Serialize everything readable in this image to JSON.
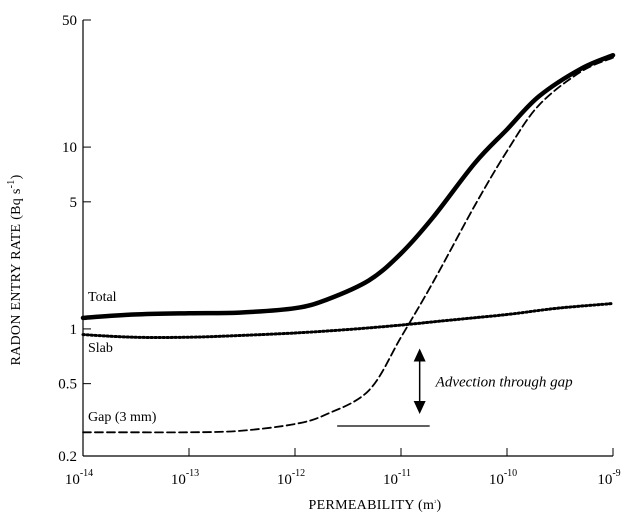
{
  "chart_data": {
    "type": "line",
    "title": "",
    "xlabel": "PERMEABILITY (m",
    "xlabel_sup": "2",
    "xlabel_close": ")",
    "ylabel": "RADON ENTRY RATE  (Bq s",
    "ylabel_sup": "-1",
    "ylabel_close": ")",
    "xscale": "log",
    "yscale": "log",
    "xlim": [
      1e-14,
      1e-09
    ],
    "ylim": [
      0.2,
      50
    ],
    "x_ticks": [
      {
        "base": "10",
        "exp": "-14"
      },
      {
        "base": "10",
        "exp": "-13"
      },
      {
        "base": "10",
        "exp": "-12"
      },
      {
        "base": "10",
        "exp": "-11"
      },
      {
        "base": "10",
        "exp": "-10"
      },
      {
        "base": "10",
        "exp": "-9"
      }
    ],
    "y_ticks": [
      "0.2",
      "0.5",
      "1",
      "5",
      "10",
      "50"
    ],
    "grid": false,
    "legend": "none",
    "series": [
      {
        "name": "Total",
        "style": "solid-thick",
        "x": [
          1e-14,
          3e-14,
          1e-13,
          3e-13,
          1e-12,
          2e-12,
          5e-12,
          1e-11,
          2e-11,
          5e-11,
          1e-10,
          2e-10,
          5e-10,
          1e-09
        ],
        "y": [
          1.15,
          1.2,
          1.22,
          1.23,
          1.3,
          1.45,
          1.85,
          2.6,
          4.1,
          8.2,
          12.5,
          19,
          27,
          32
        ]
      },
      {
        "name": "Slab",
        "style": "dotted",
        "x": [
          1e-14,
          3e-14,
          1e-13,
          3e-13,
          1e-12,
          3e-12,
          1e-11,
          3e-11,
          1e-10,
          3e-10,
          1e-09
        ],
        "y": [
          0.93,
          0.9,
          0.9,
          0.92,
          0.95,
          0.99,
          1.05,
          1.12,
          1.2,
          1.3,
          1.38
        ]
      },
      {
        "name": "Gap (3 mm)",
        "style": "dashed",
        "x": [
          1e-14,
          3e-14,
          1e-13,
          3e-13,
          1e-12,
          2e-12,
          5e-12,
          1e-11,
          2e-11,
          5e-11,
          1e-10,
          2e-10,
          5e-10,
          1e-09
        ],
        "y": [
          0.27,
          0.27,
          0.27,
          0.275,
          0.3,
          0.34,
          0.46,
          0.9,
          1.8,
          4.8,
          9.5,
          17,
          26,
          31
        ]
      }
    ],
    "annotations": {
      "label": "Advection through gap",
      "arrow_x": 1.5e-11,
      "arrow_y_top": 0.8,
      "arrow_y_bottom": 0.3,
      "baseline_x": [
        2.5e-12,
        1.5e-11
      ],
      "baseline_y": 0.3
    }
  }
}
